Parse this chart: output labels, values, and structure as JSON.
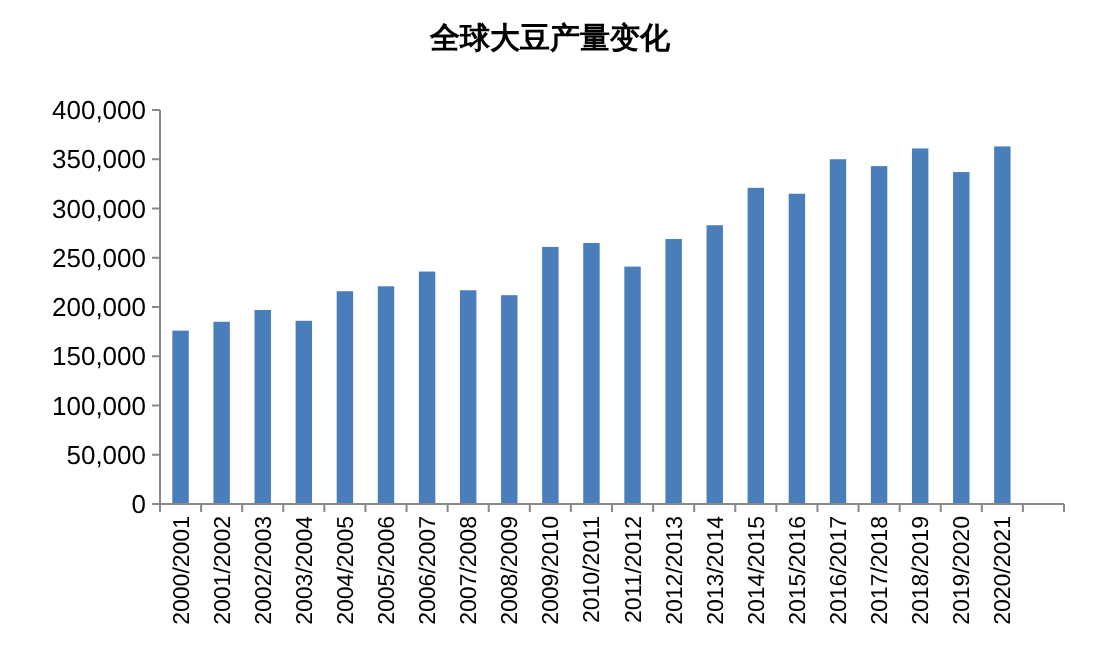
{
  "chart_data": {
    "type": "bar",
    "title": "全球大豆产量变化",
    "categories": [
      "2000/2001",
      "2001/2002",
      "2002/2003",
      "2003/2004",
      "2004/2005",
      "2005/2006",
      "2006/2007",
      "2007/2008",
      "2008/2009",
      "2009/2010",
      "2010/2011",
      "2011/2012",
      "2012/2013",
      "2013/2014",
      "2014/2015",
      "2015/2016",
      "2016/2017",
      "2017/2018",
      "2018/2019",
      "2019/2020",
      "2020/2021"
    ],
    "values": [
      176000,
      185000,
      197000,
      186000,
      216000,
      221000,
      236000,
      217000,
      212000,
      261000,
      265000,
      241000,
      269000,
      283000,
      321000,
      315000,
      350000,
      343000,
      361000,
      337000,
      363000
    ],
    "color": "#4a7ebb",
    "ylim": [
      0,
      400000
    ],
    "yticks": [
      0,
      {
        "value": 50000,
        "label": "50,000"
      },
      {
        "value": 100000,
        "label": "100,000"
      },
      {
        "value": 150000,
        "label": "150,000"
      },
      {
        "value": 200000,
        "label": "200,000"
      },
      {
        "value": 250000,
        "label": "250,000"
      },
      {
        "value": 300000,
        "label": "300,000"
      },
      {
        "value": 350000,
        "label": "350,000"
      },
      {
        "value": 400000,
        "label": "400,000"
      }
    ]
  }
}
